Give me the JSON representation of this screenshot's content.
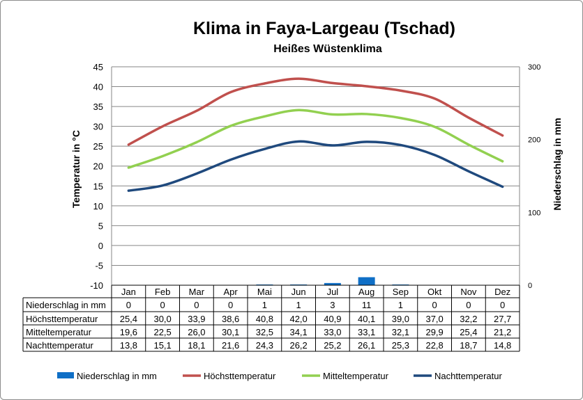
{
  "chart_data": {
    "type": "line",
    "title": "Klima in Faya-Largeau (Tschad)",
    "subtitle": "Heißes Wüstenklima",
    "ylabel": "Temperatur in °C",
    "y2label": "Niederschlag in mm",
    "ylim": [
      -10,
      45
    ],
    "yticks": [
      -10,
      -5,
      0,
      5,
      10,
      15,
      20,
      25,
      30,
      35,
      40,
      45
    ],
    "y2lim": [
      0,
      300
    ],
    "y2ticks": [
      0,
      100,
      200,
      300
    ],
    "grid": true,
    "legend_position": "bottom",
    "categories": [
      "Jan",
      "Feb",
      "Mar",
      "Apr",
      "Mai",
      "Jun",
      "Jul",
      "Aug",
      "Sep",
      "Okt",
      "Nov",
      "Dez"
    ],
    "series": [
      {
        "name": "Niederschlag in mm",
        "type": "bar",
        "axis": "right",
        "color": "#0f6fc6",
        "values": [
          0,
          0,
          0,
          0,
          1,
          1,
          3,
          11,
          1,
          0,
          0,
          0
        ],
        "labels": [
          "0",
          "0",
          "0",
          "0",
          "1",
          "1",
          "3",
          "11",
          "1",
          "0",
          "0",
          "0"
        ]
      },
      {
        "name": "Höchsttemperatur",
        "type": "line",
        "axis": "left",
        "color": "#c0504d",
        "values": [
          25.4,
          30.0,
          33.9,
          38.6,
          40.8,
          42.0,
          40.9,
          40.1,
          39.0,
          37.0,
          32.2,
          27.7
        ],
        "labels": [
          "25,4",
          "30,0",
          "33,9",
          "38,6",
          "40,8",
          "42,0",
          "40,9",
          "40,1",
          "39,0",
          "37,0",
          "32,2",
          "27,7"
        ]
      },
      {
        "name": "Mitteltemperatur",
        "type": "line",
        "axis": "left",
        "color": "#92d050",
        "values": [
          19.6,
          22.5,
          26.0,
          30.1,
          32.5,
          34.1,
          33.0,
          33.1,
          32.1,
          29.9,
          25.4,
          21.2
        ],
        "labels": [
          "19,6",
          "22,5",
          "26,0",
          "30,1",
          "32,5",
          "34,1",
          "33,0",
          "33,1",
          "32,1",
          "29,9",
          "25,4",
          "21,2"
        ]
      },
      {
        "name": "Nachttemperatur",
        "type": "line",
        "axis": "left",
        "color": "#1f497d",
        "values": [
          13.8,
          15.1,
          18.1,
          21.6,
          24.3,
          26.2,
          25.2,
          26.1,
          25.3,
          22.8,
          18.7,
          14.8
        ],
        "labels": [
          "13,8",
          "15,1",
          "18,1",
          "21,6",
          "24,3",
          "26,2",
          "25,2",
          "26,1",
          "25,3",
          "22,8",
          "18,7",
          "14,8"
        ]
      }
    ]
  }
}
